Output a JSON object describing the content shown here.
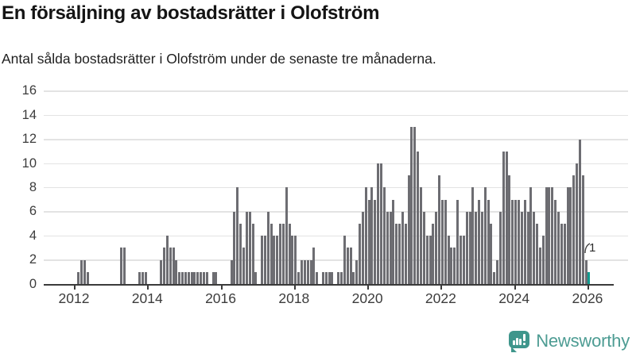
{
  "header": {
    "title": "En försäljning av bostadsrätter i Olofström",
    "subtitle": "Antal sålda bostadsrätter i Olofström under de senaste tre månaderna."
  },
  "chart_data": {
    "type": "bar",
    "title": "En försäljning av bostadsrätter i Olofström",
    "subtitle": "Antal sålda bostadsrätter i Olofström under de senaste tre månaderna.",
    "xlabel": "",
    "ylabel": "",
    "ylim": [
      0,
      16
    ],
    "yticks": [
      0,
      2,
      4,
      6,
      8,
      10,
      12,
      14,
      16
    ],
    "xticks": [
      "2012",
      "2014",
      "2016",
      "2018",
      "2020",
      "2022",
      "2024",
      "2026"
    ],
    "x_start": "2012-01",
    "frequency": "monthly",
    "grid": true,
    "legend_position": "none",
    "bar_color": "#6d6d72",
    "values": [
      0,
      1,
      2,
      2,
      1,
      0,
      0,
      0,
      0,
      0,
      0,
      0,
      0,
      0,
      0,
      3,
      3,
      0,
      0,
      0,
      0,
      1,
      1,
      1,
      0,
      0,
      0,
      0,
      2,
      3,
      4,
      3,
      3,
      2,
      1,
      1,
      1,
      1,
      1,
      1,
      1,
      1,
      1,
      1,
      0,
      1,
      1,
      0,
      0,
      0,
      0,
      2,
      6,
      8,
      5,
      3,
      6,
      6,
      5,
      1,
      0,
      4,
      4,
      6,
      5,
      4,
      4,
      5,
      5,
      8,
      5,
      4,
      4,
      1,
      2,
      2,
      2,
      2,
      3,
      1,
      0,
      1,
      1,
      1,
      1,
      0,
      1,
      1,
      4,
      3,
      3,
      1,
      2,
      5,
      6,
      8,
      7,
      8,
      7,
      10,
      10,
      8,
      6,
      6,
      7,
      5,
      5,
      6,
      5,
      9,
      13,
      13,
      11,
      8,
      6,
      4,
      4,
      5,
      6,
      9,
      7,
      7,
      4,
      3,
      3,
      7,
      4,
      4,
      6,
      6,
      8,
      6,
      7,
      6,
      8,
      7,
      5,
      1,
      2,
      6,
      11,
      11,
      9,
      7,
      7,
      7,
      6,
      7,
      6,
      8,
      6,
      5,
      3,
      4,
      8,
      8,
      8,
      7,
      6,
      5,
      5,
      8,
      8,
      9,
      10,
      12,
      9,
      2,
      1
    ],
    "highlight": {
      "month": "2026-01",
      "value": 1,
      "color": "#129a8e",
      "label": "1"
    }
  },
  "branding": {
    "logo_text": "Newsworthy",
    "logo_text_color": "#4d9c93",
    "icon_color": "#3f968c",
    "icon_name": "newsworthy-speech-bubble-chart-icon"
  }
}
